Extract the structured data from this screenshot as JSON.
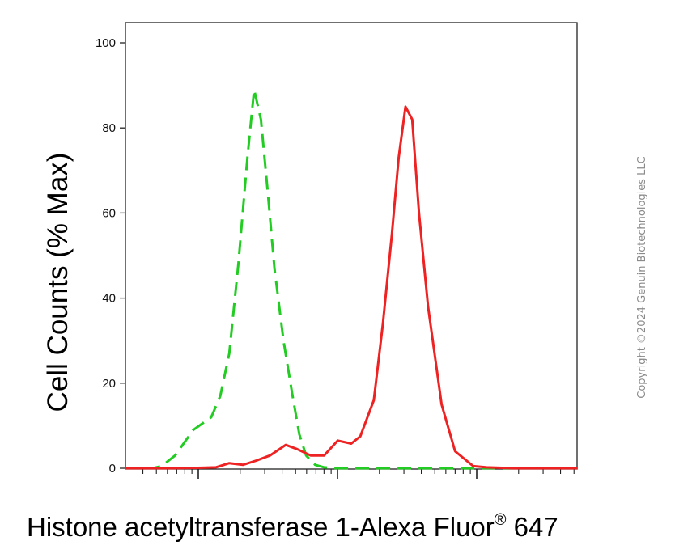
{
  "chart_data": {
    "type": "line",
    "title": "",
    "xlabel": "Histone acetyltransferase 1-Alexa Fluor",
    "xlabel_superscript": "®",
    "xlabel_suffix": " 647",
    "ylabel": "Cell Counts (% Max)",
    "x_scale": "log",
    "x_axis_tick_labels": false,
    "xlim": [
      0.0,
      1.0
    ],
    "ylim": [
      0,
      100
    ],
    "yticks": [
      "0",
      "20",
      "40",
      "60",
      "80",
      "100"
    ],
    "ytick_values": [
      0,
      20,
      40,
      60,
      80,
      100
    ],
    "grid": false,
    "legend": "none",
    "series": [
      {
        "color": "#22cc22",
        "line_style": "dashed",
        "x": [
          0.0,
          0.06,
          0.08,
          0.11,
          0.15,
          0.19,
          0.21,
          0.23,
          0.25,
          0.27,
          0.285,
          0.3,
          0.315,
          0.33,
          0.35,
          0.37,
          0.385,
          0.4,
          0.42,
          0.44,
          0.47,
          0.5,
          0.6,
          0.7,
          0.8,
          1.0
        ],
        "y": [
          0.0,
          0.0,
          0.5,
          3.0,
          9.0,
          12.0,
          17.0,
          27.0,
          48.0,
          73.0,
          89.0,
          82.0,
          65.0,
          47.0,
          30.0,
          17.0,
          8.0,
          3.0,
          0.8,
          0.2,
          0.0,
          0.0,
          0.0,
          0.0,
          0.0,
          0.0
        ]
      },
      {
        "color": "#ee2222",
        "line_style": "solid",
        "x": [
          0.0,
          0.1,
          0.16,
          0.2,
          0.23,
          0.26,
          0.29,
          0.32,
          0.355,
          0.38,
          0.41,
          0.44,
          0.47,
          0.5,
          0.52,
          0.55,
          0.57,
          0.59,
          0.605,
          0.62,
          0.635,
          0.65,
          0.67,
          0.7,
          0.73,
          0.77,
          0.8,
          0.86,
          1.0
        ],
        "y": [
          0.0,
          0.0,
          0.1,
          0.2,
          1.2,
          0.8,
          1.8,
          3.0,
          5.5,
          4.5,
          3.0,
          3.0,
          6.5,
          5.8,
          7.5,
          16.0,
          34.0,
          55.0,
          73.0,
          85.0,
          82.0,
          60.0,
          38.0,
          15.0,
          4.0,
          0.5,
          0.2,
          0.0,
          0.0
        ]
      }
    ]
  },
  "watermark": {
    "text": "Copyright ©2024 Genuin Biotechnologies LLC"
  }
}
